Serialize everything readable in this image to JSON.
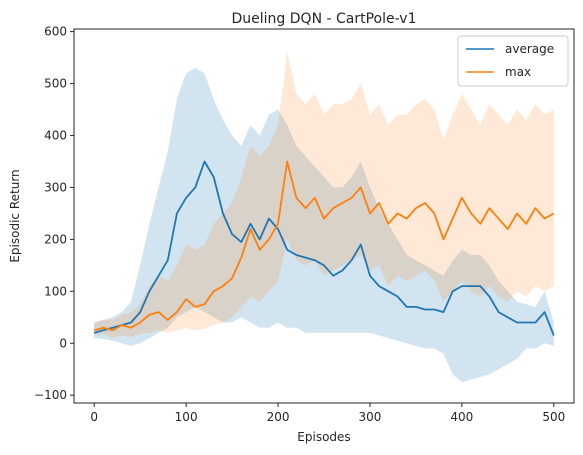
{
  "chart_data": {
    "type": "line",
    "title": "Dueling DQN - CartPole-v1",
    "xlabel": "Episodes",
    "ylabel": "Episodic Return",
    "xlim": [
      -22,
      522
    ],
    "ylim": [
      -115,
      605
    ],
    "xticks": [
      0,
      100,
      200,
      300,
      400,
      500
    ],
    "yticks": [
      -100,
      0,
      100,
      200,
      300,
      400,
      500,
      600
    ],
    "grid": false,
    "legend_position": "top-right",
    "series": [
      {
        "name": "average",
        "color": "#1f77b4",
        "x": [
          0,
          10,
          20,
          30,
          40,
          50,
          60,
          70,
          80,
          90,
          100,
          110,
          120,
          130,
          140,
          150,
          160,
          170,
          180,
          190,
          200,
          210,
          220,
          230,
          240,
          250,
          260,
          270,
          280,
          290,
          300,
          310,
          320,
          330,
          340,
          350,
          360,
          370,
          380,
          390,
          400,
          410,
          420,
          430,
          440,
          450,
          460,
          470,
          480,
          490,
          500
        ],
        "y": [
          20,
          25,
          30,
          35,
          40,
          60,
          100,
          130,
          160,
          250,
          280,
          300,
          350,
          320,
          250,
          210,
          195,
          230,
          200,
          240,
          220,
          180,
          170,
          165,
          160,
          150,
          130,
          140,
          160,
          190,
          130,
          110,
          100,
          90,
          70,
          70,
          65,
          65,
          60,
          100,
          110,
          110,
          110,
          90,
          60,
          50,
          40,
          40,
          40,
          60,
          15
        ],
        "band_lower": [
          10,
          8,
          5,
          0,
          -5,
          0,
          10,
          20,
          30,
          50,
          60,
          70,
          60,
          50,
          40,
          40,
          50,
          40,
          30,
          30,
          40,
          30,
          30,
          20,
          20,
          20,
          20,
          20,
          20,
          20,
          20,
          15,
          10,
          5,
          0,
          -5,
          -10,
          -10,
          -20,
          -60,
          -75,
          -70,
          -65,
          -60,
          -50,
          -40,
          -30,
          -10,
          -10,
          0,
          -5
        ],
        "band_upper": [
          40,
          45,
          50,
          60,
          80,
          150,
          230,
          300,
          370,
          470,
          520,
          530,
          520,
          470,
          430,
          400,
          380,
          420,
          400,
          440,
          450,
          420,
          380,
          360,
          340,
          320,
          300,
          300,
          320,
          350,
          300,
          260,
          230,
          200,
          170,
          160,
          150,
          140,
          130,
          160,
          180,
          170,
          170,
          150,
          120,
          100,
          80,
          75,
          70,
          100,
          40
        ]
      },
      {
        "name": "max",
        "color": "#ff7f0e",
        "x": [
          0,
          10,
          20,
          30,
          40,
          50,
          60,
          70,
          80,
          90,
          100,
          110,
          120,
          130,
          140,
          150,
          160,
          170,
          180,
          190,
          200,
          210,
          220,
          230,
          240,
          250,
          260,
          270,
          280,
          290,
          300,
          310,
          320,
          330,
          340,
          350,
          360,
          370,
          380,
          390,
          400,
          410,
          420,
          430,
          440,
          450,
          460,
          470,
          480,
          490,
          500
        ],
        "y": [
          25,
          30,
          25,
          35,
          30,
          40,
          55,
          60,
          45,
          60,
          85,
          70,
          75,
          100,
          110,
          125,
          165,
          220,
          180,
          200,
          230,
          350,
          280,
          260,
          280,
          240,
          260,
          270,
          280,
          300,
          250,
          270,
          230,
          250,
          240,
          260,
          270,
          250,
          200,
          240,
          280,
          250,
          230,
          260,
          240,
          220,
          250,
          230,
          260,
          240,
          250
        ],
        "band_lower": [
          15,
          18,
          10,
          15,
          12,
          18,
          20,
          25,
          20,
          25,
          30,
          25,
          28,
          35,
          40,
          50,
          70,
          90,
          80,
          100,
          120,
          200,
          160,
          150,
          160,
          130,
          140,
          150,
          160,
          170,
          140,
          150,
          110,
          130,
          120,
          130,
          140,
          120,
          80,
          100,
          120,
          100,
          90,
          110,
          90,
          80,
          100,
          90,
          110,
          100,
          110
        ],
        "band_upper": [
          40,
          45,
          45,
          55,
          60,
          75,
          110,
          130,
          120,
          150,
          190,
          180,
          190,
          230,
          250,
          270,
          320,
          380,
          360,
          380,
          420,
          560,
          480,
          460,
          480,
          440,
          460,
          460,
          470,
          500,
          440,
          460,
          420,
          440,
          440,
          460,
          470,
          450,
          390,
          440,
          480,
          450,
          420,
          460,
          440,
          420,
          450,
          430,
          460,
          440,
          450
        ]
      }
    ]
  }
}
